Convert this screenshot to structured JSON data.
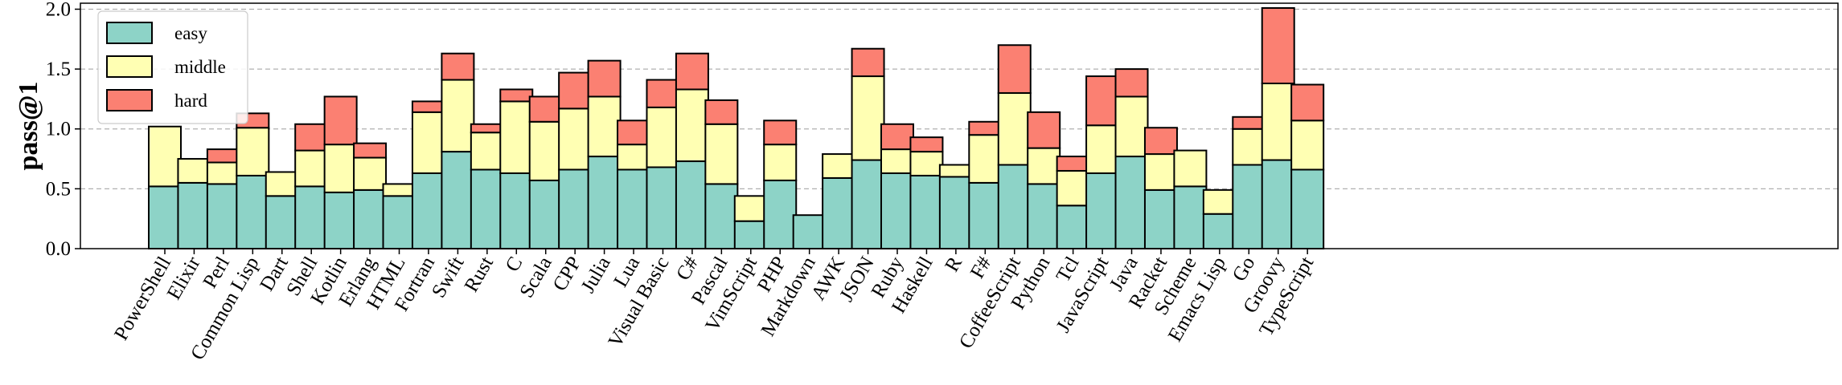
{
  "chart_data": {
    "type": "bar",
    "stacked": true,
    "title": "",
    "xlabel": "",
    "ylabel": "pass@1",
    "ylim": [
      0,
      2.05
    ],
    "yticks": [
      "0.0",
      "0.5",
      "1.0",
      "1.5",
      "2.0"
    ],
    "grid": "horizontal-dashed",
    "legend_position": "top-left",
    "categories": [
      "PowerShell",
      "Elixir",
      "Perl",
      "Common Lisp",
      "Dart",
      "Shell",
      "Kotlin",
      "Erlang",
      "HTML",
      "Fortran",
      "Swift",
      "Rust",
      "C",
      "Scala",
      "CPP",
      "Julia",
      "Lua",
      "Visual Basic",
      "C#",
      "Pascal",
      "VimScript",
      "PHP",
      "Markdown",
      "AWK",
      "JSON",
      "Ruby",
      "Haskell",
      "R",
      "F#",
      "CoffeeScript",
      "Python",
      "Tcl",
      "JavaScript",
      "Java",
      "Racket",
      "Scheme",
      "Emacs Lisp",
      "Go",
      "Groovy",
      "TypeScript"
    ],
    "series": [
      {
        "name": "easy",
        "color": "#8dd3c7",
        "values": [
          0.52,
          0.55,
          0.54,
          0.61,
          0.44,
          0.52,
          0.47,
          0.49,
          0.44,
          0.63,
          0.81,
          0.66,
          0.63,
          0.57,
          0.66,
          0.77,
          0.66,
          0.68,
          0.73,
          0.54,
          0.23,
          0.57,
          0.28,
          0.59,
          0.74,
          0.63,
          0.61,
          0.6,
          0.55,
          0.7,
          0.54,
          0.36,
          0.63,
          0.77,
          0.49,
          0.52,
          0.29,
          0.7,
          0.74,
          0.66
        ]
      },
      {
        "name": "middle",
        "color": "#ffffb3",
        "values": [
          0.5,
          0.2,
          0.18,
          0.4,
          0.2,
          0.3,
          0.4,
          0.27,
          0.1,
          0.51,
          0.6,
          0.31,
          0.6,
          0.49,
          0.51,
          0.5,
          0.21,
          0.5,
          0.6,
          0.5,
          0.21,
          0.3,
          0.0,
          0.2,
          0.7,
          0.2,
          0.2,
          0.1,
          0.4,
          0.6,
          0.3,
          0.29,
          0.4,
          0.5,
          0.3,
          0.3,
          0.2,
          0.3,
          0.64,
          0.41
        ]
      },
      {
        "name": "hard",
        "color": "#fb8072",
        "values": [
          0.0,
          0.0,
          0.11,
          0.12,
          0.0,
          0.22,
          0.4,
          0.12,
          0.0,
          0.09,
          0.22,
          0.07,
          0.1,
          0.21,
          0.3,
          0.3,
          0.2,
          0.23,
          0.3,
          0.2,
          0.0,
          0.2,
          0.0,
          0.0,
          0.23,
          0.21,
          0.12,
          0.0,
          0.11,
          0.4,
          0.3,
          0.12,
          0.41,
          0.23,
          0.22,
          0.0,
          0.0,
          0.1,
          0.63,
          0.3
        ]
      }
    ]
  }
}
